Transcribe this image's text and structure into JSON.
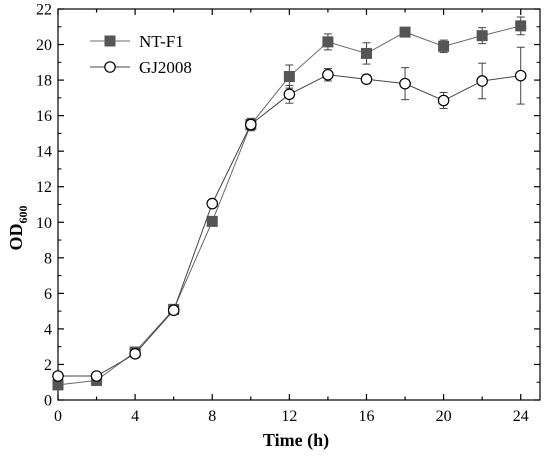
{
  "chart_data": {
    "type": "line",
    "xlabel": "Time (h)",
    "ylabel_main": "OD",
    "ylabel_sub": "600",
    "xlim": [
      0,
      25
    ],
    "ylim": [
      0,
      22
    ],
    "xticks": [
      0,
      2,
      4,
      6,
      8,
      10,
      12,
      14,
      16,
      18,
      20,
      22,
      24
    ],
    "xtick_labels": [
      "0",
      "4",
      "8",
      "12",
      "16",
      "20",
      "24"
    ],
    "yticks": [
      0,
      2,
      4,
      6,
      8,
      10,
      12,
      14,
      16,
      18,
      20,
      22
    ],
    "ytick_labels": [
      "0",
      "2",
      "4",
      "6",
      "8",
      "10",
      "12",
      "14",
      "16",
      "18",
      "20",
      "22"
    ],
    "grid": false,
    "legend_position": "top-left",
    "series": [
      {
        "name": "NT-F1",
        "marker": "square",
        "color": "#555555",
        "x": [
          0,
          2,
          4,
          6,
          8,
          10,
          12,
          14,
          16,
          18,
          20,
          22,
          24
        ],
        "y": [
          0.85,
          1.1,
          2.7,
          5.1,
          10.05,
          15.5,
          18.2,
          20.15,
          19.5,
          20.7,
          19.9,
          20.5,
          21.05
        ],
        "err": [
          0.1,
          0.1,
          0.15,
          0.1,
          0.1,
          0.35,
          0.65,
          0.45,
          0.6,
          0.15,
          0.35,
          0.45,
          0.5
        ]
      },
      {
        "name": "GJ2008",
        "marker": "circle",
        "color": "#333333",
        "x": [
          0,
          2,
          4,
          6,
          8,
          10,
          12,
          14,
          16,
          18,
          20,
          22,
          24
        ],
        "y": [
          1.35,
          1.35,
          2.6,
          5.05,
          11.05,
          15.5,
          17.2,
          18.3,
          18.05,
          17.8,
          16.85,
          17.95,
          18.25
        ],
        "err": [
          0.1,
          0.1,
          0.15,
          0.1,
          0.1,
          0.3,
          0.5,
          0.35,
          0.25,
          0.9,
          0.45,
          1.0,
          1.6
        ]
      }
    ]
  }
}
